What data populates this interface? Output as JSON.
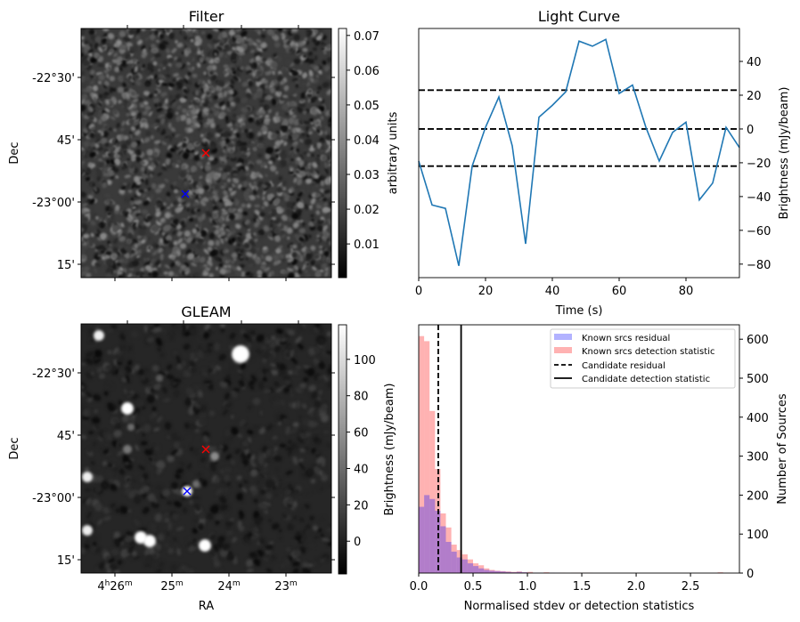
{
  "chart_data": [
    {
      "type": "heatmap",
      "title": "Filter",
      "ylabel": "Dec",
      "yticks": [
        "-22°30'",
        "45'",
        "-23°00'",
        "15'"
      ],
      "colormap": "gray",
      "colorbar": {
        "label": "arbitrary units",
        "ticks": [
          0.01,
          0.02,
          0.03,
          0.04,
          0.05,
          0.06,
          0.07
        ],
        "tick_labels": [
          "0.01",
          "0.02",
          "0.03",
          "0.04",
          "0.05",
          "0.06",
          "0.07"
        ],
        "range": [
          0.0003,
          0.072
        ]
      },
      "markers": [
        {
          "name": "candidate",
          "symbol": "x",
          "color": "#ff0000"
        },
        {
          "name": "known source",
          "symbol": "x",
          "color": "#0000ff"
        }
      ]
    },
    {
      "type": "line",
      "title": "Light Curve",
      "xlabel": "Time (s)",
      "ylabel": "Brightness (mJy/beam)",
      "x": [
        0,
        4,
        8,
        12,
        16,
        20,
        24,
        28,
        32,
        36,
        40,
        44,
        48,
        52,
        56,
        60,
        64,
        68,
        72,
        76,
        80,
        84,
        88,
        92,
        96
      ],
      "y": [
        -19,
        -45,
        -47,
        -81,
        -22,
        1,
        19,
        -10,
        -68,
        7,
        14,
        22,
        52,
        49,
        53,
        21,
        26,
        1,
        -19,
        -2,
        4,
        -42,
        -32,
        1,
        -11
      ],
      "color": "#1f77b4",
      "xlim": [
        0,
        96
      ],
      "ylim": [
        -88,
        59.5
      ],
      "xticks": [
        0,
        20,
        40,
        60,
        80
      ],
      "xtick_labels": [
        "0",
        "20",
        "40",
        "60",
        "80"
      ],
      "yticks": [
        -80,
        -60,
        -40,
        -20,
        0,
        20,
        40
      ],
      "ytick_labels": [
        "−80",
        "−60",
        "−40",
        "−20",
        "0",
        "20",
        "40"
      ],
      "hlines": [
        23,
        0,
        -22
      ],
      "grid": false
    },
    {
      "type": "heatmap",
      "title": "GLEAM",
      "xlabel": "RA",
      "ylabel": "Dec",
      "xticks": [
        [
          "4",
          "h",
          "26",
          "m"
        ],
        [
          "25",
          "m"
        ],
        [
          "24",
          "m"
        ],
        [
          "23",
          "m"
        ]
      ],
      "yticks": [
        "-22°30'",
        "45'",
        "-23°00'",
        "15'"
      ],
      "colormap": "gray",
      "colorbar": {
        "label": "Brightness (mJy/beam)",
        "ticks": [
          0,
          20,
          40,
          60,
          80,
          100
        ],
        "tick_labels": [
          "0",
          "20",
          "40",
          "60",
          "80",
          "100"
        ],
        "range": [
          -18,
          119
        ]
      },
      "markers": [
        {
          "name": "candidate",
          "symbol": "x",
          "color": "#ff0000"
        },
        {
          "name": "known source",
          "symbol": "x",
          "color": "#0000ff"
        }
      ]
    },
    {
      "type": "bar",
      "subtype": "histogram",
      "xlabel": "Normalised stdev or detection statistics",
      "ylabel": "Number of Sources",
      "xlim": [
        0,
        2.95
      ],
      "ylim": [
        0,
        637
      ],
      "xticks": [
        0,
        0.5,
        1.0,
        1.5,
        2.0,
        2.5
      ],
      "xtick_labels": [
        "0.0",
        "0.5",
        "1.0",
        "1.5",
        "2.0",
        "2.5"
      ],
      "yticks": [
        0,
        100,
        200,
        300,
        400,
        500,
        600
      ],
      "ytick_labels": [
        "0",
        "100",
        "200",
        "300",
        "400",
        "500",
        "600"
      ],
      "bin_width": 0.05,
      "series": [
        {
          "name": "Known srcs residual",
          "color": "#0000ff",
          "alpha": 0.3,
          "values": [
            170,
            200,
            190,
            160,
            120,
            80,
            55,
            40,
            35,
            25,
            18,
            12,
            8,
            6,
            5,
            4,
            3,
            2,
            3,
            2,
            1,
            1,
            1,
            0,
            1,
            1
          ]
        },
        {
          "name": "Known srcs detection statistic",
          "color": "#ff0000",
          "alpha": 0.3,
          "values": [
            608,
            595,
            416,
            267,
            153,
            117,
            73,
            59,
            48,
            35,
            25,
            20,
            12,
            8,
            6,
            5,
            4,
            3,
            4,
            2,
            3,
            1,
            1,
            2,
            1,
            0,
            1,
            0,
            1,
            1,
            1,
            1,
            0,
            0,
            0,
            0,
            0,
            0,
            0,
            0,
            0,
            0,
            0,
            0,
            0,
            0,
            0,
            0,
            0,
            0,
            0,
            0,
            0,
            0,
            0,
            2
          ]
        }
      ],
      "vlines": [
        {
          "name": "Candidate residual",
          "x": 0.18,
          "style": "dashed",
          "color": "#000000"
        },
        {
          "name": "Candidate detection statistic",
          "x": 0.39,
          "style": "solid",
          "color": "#000000"
        }
      ],
      "legend": {
        "placement": "top-right",
        "entries": [
          "Known srcs residual",
          "Known srcs detection statistic",
          "Candidate residual",
          "Candidate detection statistic"
        ]
      }
    }
  ]
}
